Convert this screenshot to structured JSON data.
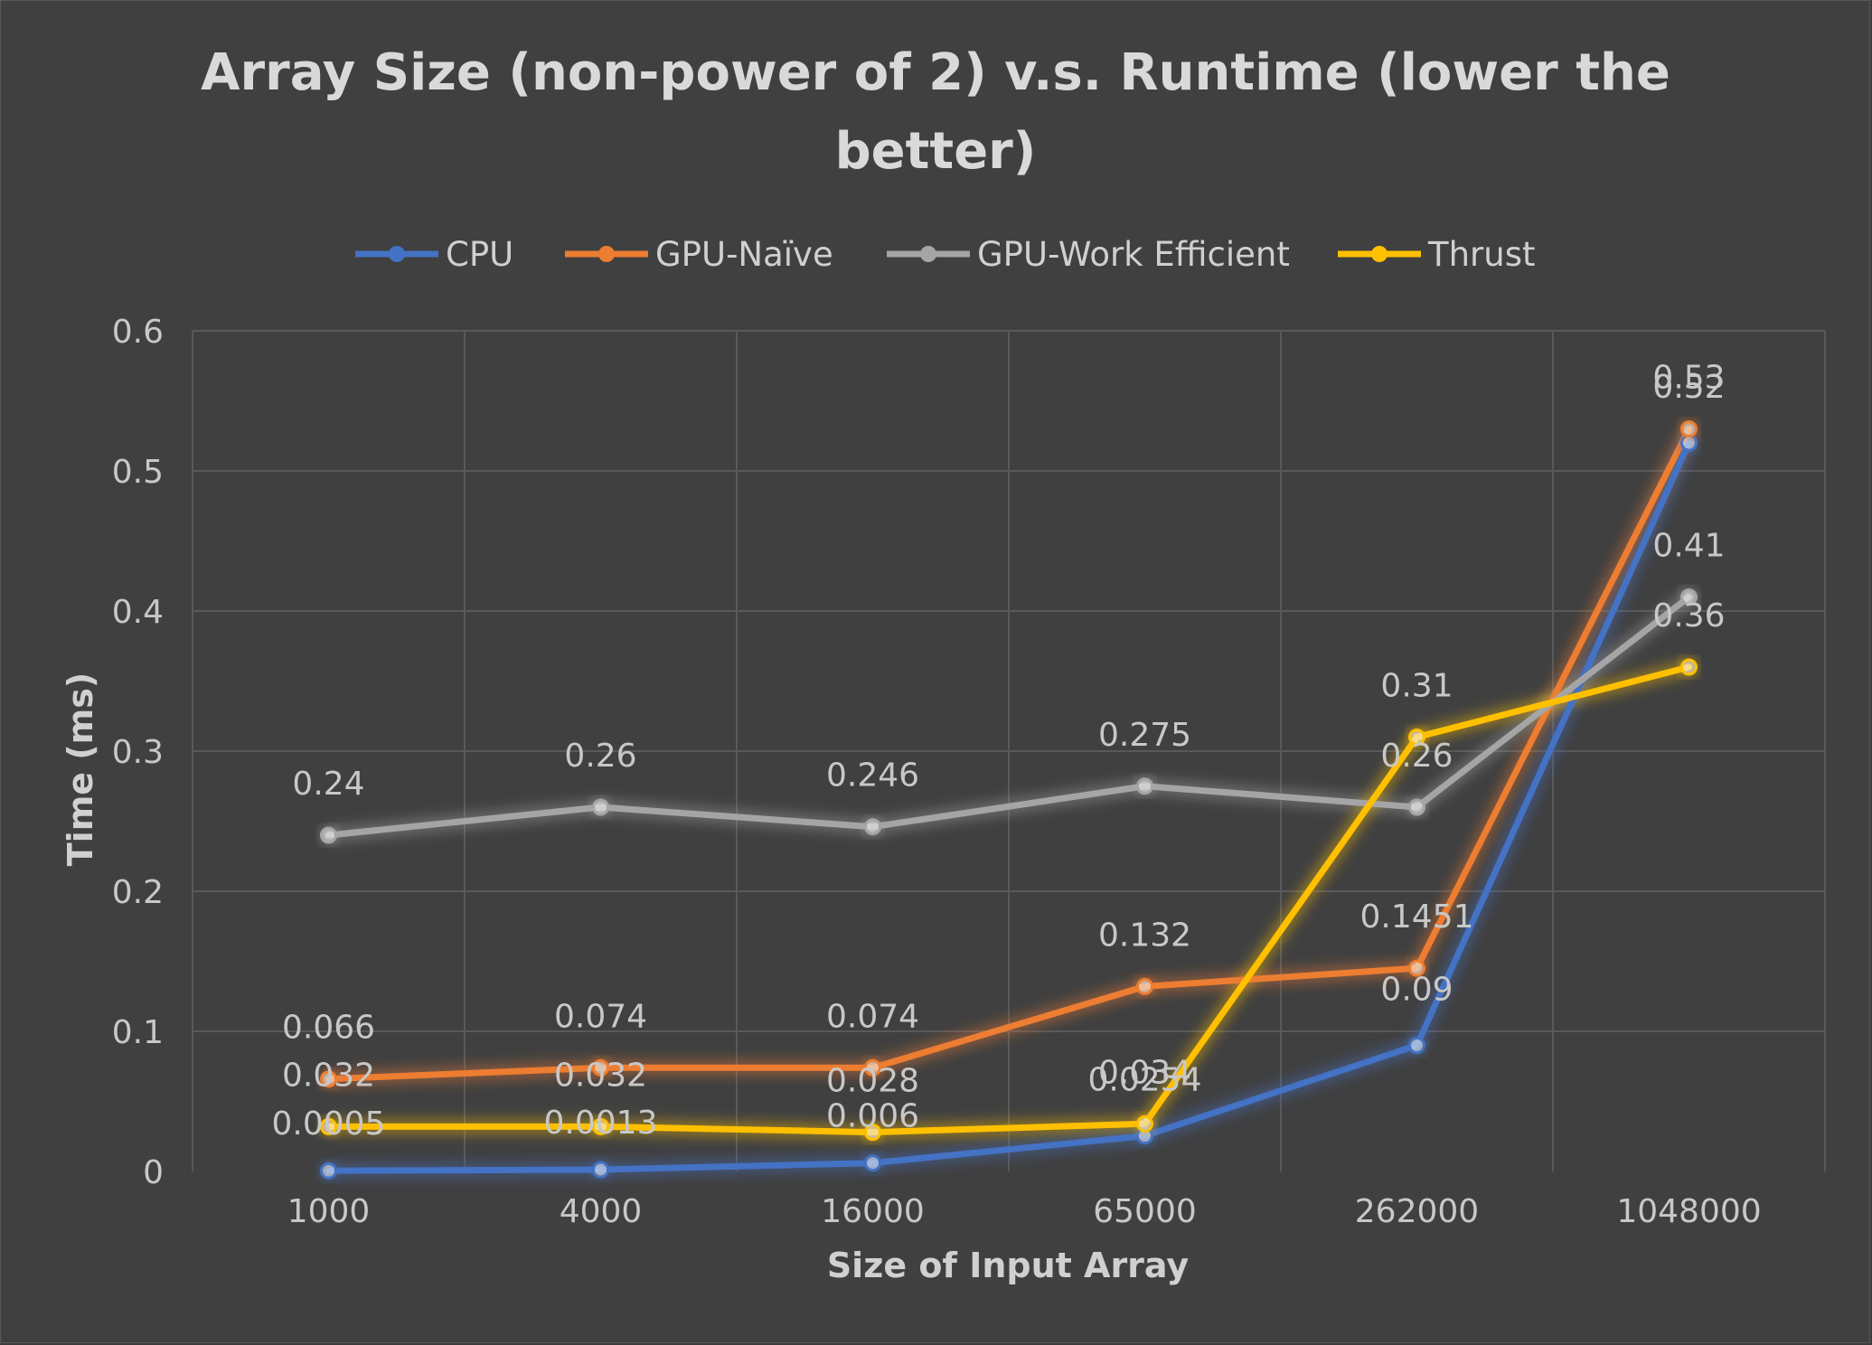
{
  "chart_data": {
    "type": "line",
    "title": "Array Size (non-power of 2) v.s. Runtime (lower the better)",
    "title_lines": [
      "Array Size (non-power of 2) v.s. Runtime (lower the",
      "better)"
    ],
    "xlabel": "Size of Input Array",
    "ylabel": "Time (ms)",
    "categories": [
      "1000",
      "4000",
      "16000",
      "65000",
      "262000",
      "1048000"
    ],
    "ylim": [
      0,
      0.6
    ],
    "yticks": [
      "0",
      "0.1",
      "0.2",
      "0.3",
      "0.4",
      "0.5",
      "0.6"
    ],
    "grid": true,
    "legend_position": "top",
    "series": [
      {
        "name": "CPU",
        "color": "#4472c4",
        "values": [
          0.0005,
          0.0013,
          0.006,
          0.0254,
          0.09,
          0.52
        ],
        "labels": [
          "0.0005",
          "0.0013",
          "0.006",
          "0.0254",
          "0.09",
          "0.52"
        ]
      },
      {
        "name": "GPU-Naïve",
        "color": "#ed7d31",
        "values": [
          0.066,
          0.074,
          0.074,
          0.132,
          0.1451,
          0.53
        ],
        "labels": [
          "0.066",
          "0.074",
          "0.074",
          "0.132",
          "0.1451",
          "0.53"
        ]
      },
      {
        "name": "GPU-Work Efficient",
        "color": "#a5a5a5",
        "values": [
          0.24,
          0.26,
          0.246,
          0.275,
          0.26,
          0.41
        ],
        "labels": [
          "0.24",
          "0.26",
          "0.246",
          "0.275",
          "0.26",
          "0.41"
        ]
      },
      {
        "name": "Thrust",
        "color": "#ffc000",
        "values": [
          0.032,
          0.032,
          0.028,
          0.034,
          0.31,
          0.36
        ],
        "labels": [
          "0.032",
          "0.032",
          "0.028",
          "0.034",
          "0.31",
          "0.36"
        ]
      }
    ]
  }
}
